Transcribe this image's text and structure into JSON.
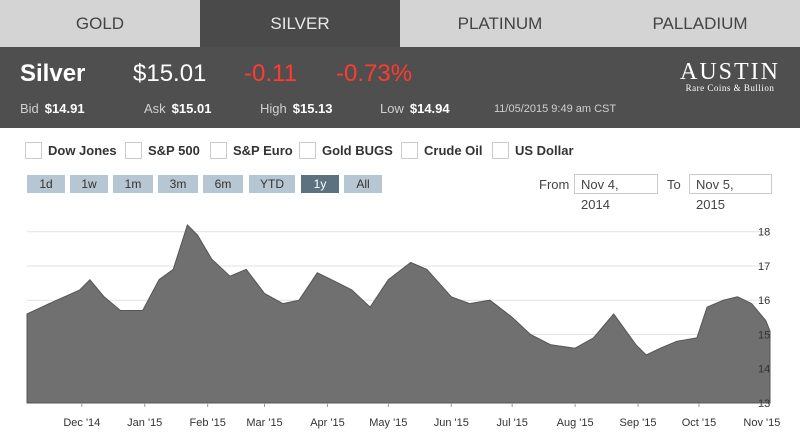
{
  "tabs": [
    {
      "label": "GOLD",
      "active": false
    },
    {
      "label": "SILVER",
      "active": true
    },
    {
      "label": "PLATINUM",
      "active": false
    },
    {
      "label": "PALLADIUM",
      "active": false
    }
  ],
  "quote": {
    "name": "Silver",
    "price": "$15.01",
    "change": "-0.11",
    "pct": "-0.73%",
    "bid_label": "Bid",
    "bid": "$14.91",
    "ask_label": "Ask",
    "ask": "$15.01",
    "high_label": "High",
    "high": "$15.13",
    "low_label": "Low",
    "low": "$14.94",
    "timestamp": "11/05/2015 9:49 am CST"
  },
  "logo": {
    "main": "AUSTIN",
    "sub": "Rare Coins & Bullion"
  },
  "compare": [
    "Dow Jones",
    "S&P 500",
    "S&P Euro",
    "Gold BUGS",
    "Crude Oil",
    "US Dollar"
  ],
  "ranges": [
    {
      "label": "1d",
      "active": false
    },
    {
      "label": "1w",
      "active": false
    },
    {
      "label": "1m",
      "active": false
    },
    {
      "label": "3m",
      "active": false
    },
    {
      "label": "6m",
      "active": false
    },
    {
      "label": "YTD",
      "active": false
    },
    {
      "label": "1y",
      "active": true
    },
    {
      "label": "All",
      "active": false
    }
  ],
  "dates": {
    "from_label": "From",
    "from": "Nov 4, 2014",
    "to_label": "To",
    "to": "Nov 5, 2015"
  },
  "colors": {
    "area": "#707070",
    "price_red": "#ff3b30",
    "active_tab": "#4a4a4a"
  },
  "chart_data": {
    "type": "area",
    "x_ticks": [
      "Dec '14",
      "Jan '15",
      "Feb '15",
      "Mar '15",
      "Apr '15",
      "May '15",
      "Jun '15",
      "Jul '15",
      "Aug '15",
      "Sep '15",
      "Oct '15",
      "Nov '15"
    ],
    "y_ticks": [
      13,
      14,
      15,
      16,
      17,
      18
    ],
    "ylim": [
      13,
      18.4
    ],
    "x": [
      "2014-11-04",
      "2014-11-15",
      "2014-11-30",
      "2014-12-05",
      "2014-12-12",
      "2014-12-20",
      "2014-12-31",
      "2015-01-08",
      "2015-01-15",
      "2015-01-22",
      "2015-01-27",
      "2015-02-03",
      "2015-02-12",
      "2015-02-20",
      "2015-03-01",
      "2015-03-10",
      "2015-03-18",
      "2015-03-27",
      "2015-04-03",
      "2015-04-13",
      "2015-04-22",
      "2015-05-01",
      "2015-05-12",
      "2015-05-20",
      "2015-06-01",
      "2015-06-10",
      "2015-06-20",
      "2015-07-01",
      "2015-07-10",
      "2015-07-20",
      "2015-08-01",
      "2015-08-10",
      "2015-08-20",
      "2015-08-31",
      "2015-09-05",
      "2015-09-12",
      "2015-09-20",
      "2015-09-30",
      "2015-10-05",
      "2015-10-13",
      "2015-10-20",
      "2015-10-27",
      "2015-11-03",
      "2015-11-05"
    ],
    "values": [
      15.6,
      15.9,
      16.3,
      16.6,
      16.1,
      15.7,
      15.7,
      16.6,
      16.9,
      18.2,
      17.9,
      17.2,
      16.7,
      16.9,
      16.2,
      15.9,
      16.0,
      16.8,
      16.6,
      16.3,
      15.8,
      16.6,
      17.1,
      16.9,
      16.1,
      15.9,
      16.0,
      15.5,
      15.0,
      14.7,
      14.6,
      14.9,
      15.6,
      14.7,
      14.4,
      14.6,
      14.8,
      14.9,
      15.8,
      16.0,
      16.1,
      15.9,
      15.4,
      15.1
    ]
  }
}
